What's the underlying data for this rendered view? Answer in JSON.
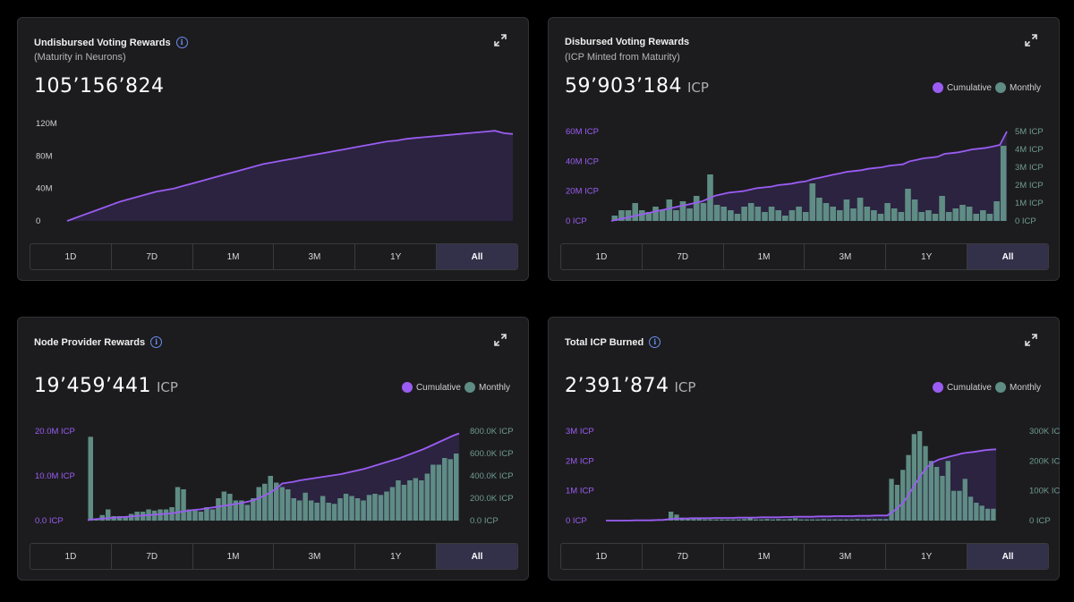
{
  "colors": {
    "purple": "#9a5cf2",
    "teal": "#5f8c84",
    "axis_left": "#9a5cf2",
    "axis_right": "#6f9a92"
  },
  "range_buttons": [
    "1D",
    "7D",
    "1M",
    "3M",
    "1Y",
    "All"
  ],
  "active_range": "All",
  "cards": [
    {
      "title": "Undisbursed Voting Rewards",
      "subtitle": "(Maturity in Neurons)",
      "value": "105’156’824",
      "unit": "",
      "chart_data": {
        "type": "area",
        "title": "Undisbursed Voting Rewards",
        "series": [
          {
            "name": "Maturity",
            "values": [
              0,
              4,
              8,
              12,
              16,
              20,
              24,
              27,
              30,
              33,
              36,
              38,
              40,
              43,
              46,
              49,
              52,
              55,
              58,
              61,
              64,
              67,
              70,
              72,
              74,
              76,
              78,
              80,
              82,
              84,
              86,
              88,
              90,
              92,
              94,
              96,
              98,
              99,
              101,
              102,
              103,
              104,
              105,
              106,
              107,
              108,
              109,
              110,
              111,
              108,
              107
            ]
          }
        ],
        "y_ticks": [
          "0",
          "40M",
          "80M",
          "120M"
        ],
        "ylim": [
          0,
          120
        ]
      }
    },
    {
      "title": "Disbursed Voting Rewards",
      "subtitle": "(ICP Minted from Maturity)",
      "value": "59’903’184",
      "unit": "ICP",
      "legend": [
        "Cumulative",
        "Monthly"
      ],
      "chart_data": {
        "type": "bar",
        "title": "Disbursed Voting Rewards",
        "series": [
          {
            "name": "Monthly",
            "axis": "right",
            "values": [
              0.3,
              0.6,
              0.6,
              1.0,
              0.6,
              0.5,
              0.8,
              0.6,
              1.2,
              0.6,
              1.1,
              0.7,
              1.4,
              1.0,
              2.6,
              0.9,
              0.8,
              0.6,
              0.4,
              0.8,
              1.0,
              0.8,
              0.5,
              0.8,
              0.6,
              0.3,
              0.6,
              0.8,
              0.5,
              2.1,
              1.3,
              1.0,
              0.8,
              0.6,
              1.2,
              0.7,
              1.3,
              0.8,
              0.6,
              0.4,
              1.0,
              0.7,
              0.5,
              1.8,
              1.2,
              0.5,
              0.6,
              0.4,
              1.4,
              0.5,
              0.7,
              0.9,
              0.8,
              0.4,
              0.6,
              0.4,
              1.1,
              4.2
            ]
          },
          {
            "name": "Cumulative",
            "axis": "left",
            "values": [
              0,
              1,
              2,
              3,
              4,
              5,
              6,
              7,
              8,
              9,
              10,
              11,
              12,
              13,
              15,
              17,
              18,
              19,
              19.5,
              20,
              21,
              22,
              22.5,
              23,
              24,
              24.5,
              25,
              26,
              26.5,
              28,
              29,
              30,
              31,
              32,
              33,
              33.5,
              34,
              35,
              35.5,
              36,
              37,
              37.5,
              38,
              40,
              41,
              42,
              42.5,
              43,
              45,
              45.5,
              46,
              47,
              48,
              48.5,
              49,
              50,
              51,
              60
            ]
          }
        ],
        "y_ticks_left": [
          "0 ICP",
          "20M ICP",
          "40M ICP",
          "60M ICP"
        ],
        "y_ticks_right": [
          "0 ICP",
          "1M ICP",
          "2M ICP",
          "3M ICP",
          "4M ICP",
          "5M ICP"
        ],
        "ylim_left": [
          0,
          60
        ],
        "ylim_right": [
          0,
          5
        ]
      }
    },
    {
      "title": "Node Provider Rewards",
      "subtitle": "",
      "value": "19’459’441",
      "unit": "ICP",
      "legend": [
        "Cumulative",
        "Monthly"
      ],
      "chart_data": {
        "type": "bar",
        "title": "Node Provider Rewards",
        "series": [
          {
            "name": "Monthly",
            "axis": "right",
            "values": [
              750,
              20,
              50,
              100,
              40,
              40,
              40,
              60,
              80,
              80,
              100,
              90,
              100,
              100,
              120,
              300,
              280,
              100,
              90,
              80,
              120,
              100,
              200,
              260,
              240,
              180,
              180,
              140,
              200,
              300,
              330,
              400,
              340,
              300,
              280,
              200,
              180,
              250,
              180,
              160,
              220,
              160,
              150,
              200,
              240,
              220,
              200,
              180,
              230,
              240,
              230,
              260,
              300,
              360,
              320,
              360,
              380,
              360,
              420,
              500,
              500,
              560,
              550,
              600
            ]
          },
          {
            "name": "Cumulative",
            "axis": "left",
            "values": [
              0.1,
              0.3,
              0.4,
              0.5,
              0.6,
              0.7,
              0.8,
              0.9,
              1.0,
              1.1,
              1.2,
              1.3,
              1.4,
              1.5,
              1.6,
              1.8,
              2.0,
              2.2,
              2.4,
              2.5,
              2.7,
              2.9,
              3.1,
              3.3,
              3.5,
              3.7,
              3.9,
              4.2,
              4.5,
              5.0,
              5.6,
              6.3,
              7.2,
              8.3,
              8.5,
              8.7,
              9.0,
              9.2,
              9.4,
              9.6,
              9.8,
              10.0,
              10.2,
              10.4,
              10.7,
              11.0,
              11.3,
              11.6,
              12.0,
              12.4,
              12.8,
              13.2,
              13.6,
              14.0,
              14.5,
              15.0,
              15.5,
              16.0,
              16.6,
              17.2,
              17.8,
              18.4,
              19.0,
              19.5
            ]
          }
        ],
        "y_ticks_left": [
          "0.0 ICP",
          "10.0M ICP",
          "20.0M ICP"
        ],
        "y_ticks_right": [
          "0.0 ICP",
          "200.0K ICP",
          "400.0K ICP",
          "600.0K ICP",
          "800.0K ICP"
        ],
        "ylim_left": [
          0,
          20
        ],
        "ylim_right": [
          0,
          800
        ]
      }
    },
    {
      "title": "Total ICP Burned",
      "subtitle": "",
      "value": "2’391’874",
      "unit": "ICP",
      "legend": [
        "Cumulative",
        "Monthly"
      ],
      "chart_data": {
        "type": "bar",
        "title": "Total ICP Burned",
        "series": [
          {
            "name": "Monthly",
            "axis": "right",
            "values": [
              2,
              2,
              2,
              2,
              2,
              3,
              3,
              3,
              4,
              4,
              5,
              30,
              20,
              10,
              5,
              5,
              5,
              4,
              4,
              4,
              4,
              4,
              4,
              4,
              5,
              8,
              4,
              4,
              5,
              4,
              5,
              4,
              5,
              8,
              4,
              4,
              4,
              4,
              5,
              4,
              4,
              4,
              4,
              4,
              5,
              4,
              5,
              5,
              5,
              5,
              140,
              120,
              170,
              220,
              290,
              300,
              250,
              200,
              180,
              150,
              200,
              100,
              100,
              140,
              80,
              60,
              50,
              40,
              40
            ]
          },
          {
            "name": "Cumulative",
            "axis": "left",
            "values": [
              0,
              0,
              0,
              0,
              0,
              0.01,
              0.01,
              0.01,
              0.01,
              0.02,
              0.02,
              0.05,
              0.06,
              0.07,
              0.07,
              0.08,
              0.08,
              0.08,
              0.08,
              0.09,
              0.09,
              0.09,
              0.09,
              0.1,
              0.1,
              0.1,
              0.1,
              0.11,
              0.11,
              0.11,
              0.11,
              0.12,
              0.12,
              0.13,
              0.13,
              0.13,
              0.13,
              0.14,
              0.14,
              0.14,
              0.15,
              0.15,
              0.15,
              0.15,
              0.16,
              0.16,
              0.16,
              0.17,
              0.17,
              0.17,
              0.3,
              0.45,
              0.65,
              0.95,
              1.25,
              1.55,
              1.8,
              1.95,
              2.05,
              2.1,
              2.15,
              2.2,
              2.25,
              2.28,
              2.3,
              2.33,
              2.36,
              2.38,
              2.39
            ]
          }
        ],
        "y_ticks_left": [
          "0 ICP",
          "1M ICP",
          "2M ICP",
          "3M ICP"
        ],
        "y_ticks_right": [
          "0 ICP",
          "100K ICP",
          "200K ICP",
          "300K ICP"
        ],
        "ylim_left": [
          0,
          3
        ],
        "ylim_right": [
          0,
          300
        ]
      }
    }
  ]
}
